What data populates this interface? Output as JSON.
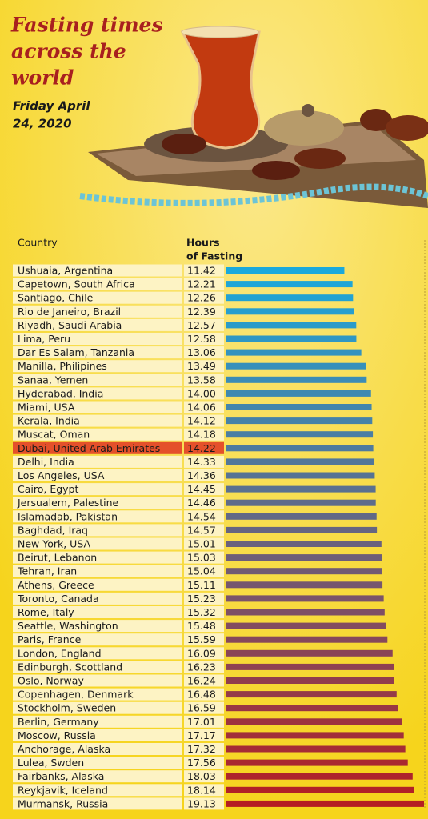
{
  "chart_data": {
    "type": "hbar",
    "title": [
      "Fasting times",
      "across the",
      "world"
    ],
    "subtitle": [
      "Friday April",
      "24, 2020"
    ],
    "category_header": "Country",
    "value_header": [
      "Hours",
      "of Fasting"
    ],
    "categories": [
      "Ushuaia, Argentina",
      "Capetown, South Africa",
      "Santiago, Chile",
      "Rio de Janeiro, Brazil",
      "Riyadh, Saudi Arabia",
      "Lima, Peru",
      "Dar Es Salam, Tanzania",
      "Manilla, Philipines",
      "Sanaa, Yemen",
      "Hyderabad, India",
      "Miami, USA",
      "Kerala, India",
      "Muscat, Oman",
      "Dubai, United Arab Emirates",
      "Delhi, India",
      "Los Angeles, USA",
      "Cairo, Egypt",
      "Jersualem, Palestine",
      "Islamadab, Pakistan",
      "Baghdad, Iraq",
      "New York, USA",
      "Beirut, Lebanon",
      "Tehran, Iran",
      "Athens, Greece",
      "Toronto, Canada",
      "Rome, Italy",
      "Seattle, Washington",
      "Paris, France",
      "London, England",
      "Edinburgh, Scottland",
      "Oslo, Norway",
      "Copenhagen, Denmark",
      "Stockholm, Sweden",
      "Berlin, Germany",
      "Moscow, Russia",
      "Anchorage, Alaska",
      "Lulea, Swden",
      "Fairbanks, Alaska",
      "Reykjavik, Iceland",
      "Murmansk, Russia"
    ],
    "values": [
      11.42,
      12.21,
      12.26,
      12.39,
      12.57,
      12.58,
      13.06,
      13.49,
      13.58,
      14.0,
      14.06,
      14.12,
      14.18,
      14.22,
      14.33,
      14.36,
      14.45,
      14.46,
      14.54,
      14.57,
      15.01,
      15.03,
      15.04,
      15.11,
      15.23,
      15.32,
      15.48,
      15.59,
      16.09,
      16.23,
      16.24,
      16.48,
      16.59,
      17.01,
      17.17,
      17.32,
      17.56,
      18.03,
      18.14,
      19.13
    ],
    "value_labels": [
      "11.42",
      "12.21",
      "12.26",
      "12.39",
      "12.57",
      "12.58",
      "13.06",
      "13.49",
      "13.58",
      "14.00",
      "14.06",
      "14.12",
      "14.18",
      "14.22",
      "14.33",
      "14.36",
      "14.45",
      "14.46",
      "14.54",
      "14.57",
      "15.01",
      "15.03",
      "15.04",
      "15.11",
      "15.23",
      "15.32",
      "15.48",
      "15.59",
      "16.09",
      "16.23",
      "16.24",
      "16.48",
      "16.59",
      "17.01",
      "17.17",
      "17.32",
      "17.56",
      "18.03",
      "18.14",
      "19.13"
    ],
    "color_start": "#1ba9dc",
    "color_end": "#b51d22",
    "highlight": {
      "index": 13,
      "color": "#e4502b"
    }
  }
}
